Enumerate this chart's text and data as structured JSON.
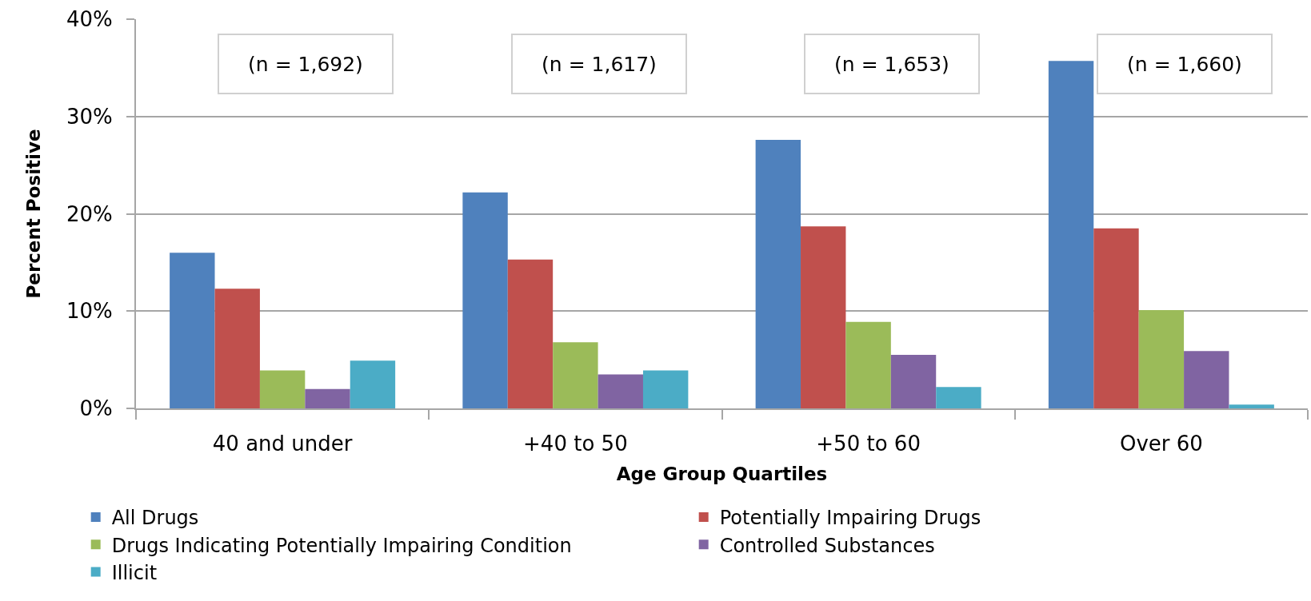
{
  "chart_data": {
    "type": "bar",
    "xlabel": "Age Group Quartiles",
    "ylabel": "Percent Positive",
    "categories": [
      "40 and under",
      "+40 to 50",
      "+50 to 60",
      "Over 60"
    ],
    "series": [
      {
        "name": "All Drugs",
        "color": "#4f81bd",
        "values": [
          16.0,
          22.2,
          27.6,
          35.7
        ]
      },
      {
        "name": "Potentially Impairing Drugs",
        "color": "#c0504d",
        "values": [
          12.3,
          15.3,
          18.7,
          18.5
        ]
      },
      {
        "name": "Drugs Indicating Potentially Impairing Condition",
        "color": "#9bbb59",
        "values": [
          3.9,
          6.8,
          8.9,
          10.1
        ]
      },
      {
        "name": "Controlled Substances",
        "color": "#8064a2",
        "values": [
          2.0,
          3.5,
          5.5,
          5.9
        ]
      },
      {
        "name": "Illicit",
        "color": "#4bacc6",
        "values": [
          4.9,
          3.9,
          2.2,
          0.4
        ]
      }
    ],
    "ylim": [
      0,
      40
    ],
    "yticks": [
      {
        "value": 0,
        "label": "0%"
      },
      {
        "value": 10,
        "label": "10%"
      },
      {
        "value": 20,
        "label": "20%"
      },
      {
        "value": 30,
        "label": "30%"
      },
      {
        "value": 40,
        "label": "40%"
      }
    ],
    "grid": "y",
    "legend": "bottom",
    "annotations": [
      "(n = 1,692)",
      "(n = 1,617)",
      "(n = 1,653)",
      "(n = 1,660)"
    ]
  }
}
